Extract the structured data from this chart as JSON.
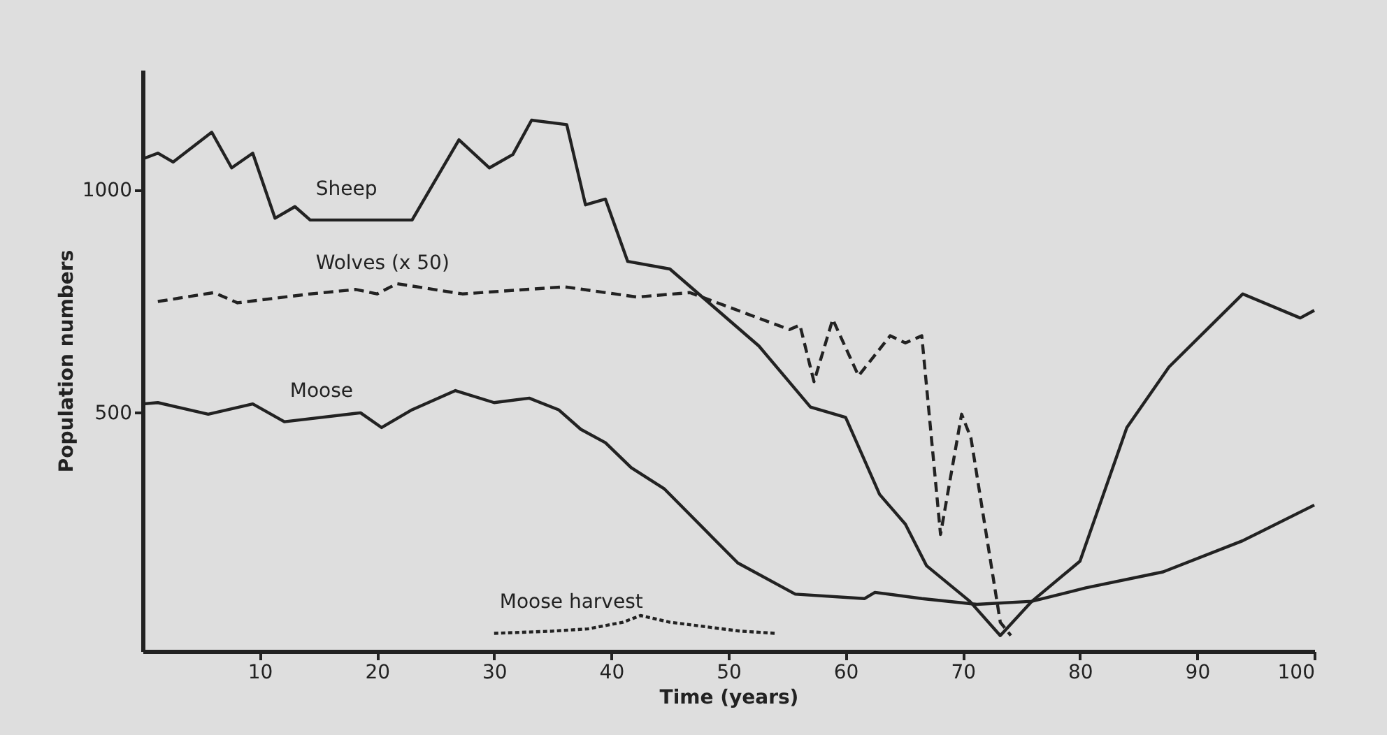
{
  "chart_data": {
    "type": "line",
    "xlabel": "Time (years)",
    "ylabel": "Population numbers",
    "xlim": [
      0,
      100
    ],
    "xticks": [
      10,
      20,
      30,
      40,
      50,
      60,
      70,
      80,
      90,
      100
    ],
    "ylim": [
      -35,
      1270
    ],
    "yticks": [
      500,
      1000
    ],
    "marker": "none",
    "series": [
      {
        "name": "Sheep",
        "color": "#222222",
        "line_style": "solid",
        "x": [
          0,
          1.3,
          2.6,
          5.9,
          7.6,
          9.4,
          11.3,
          13,
          14.3,
          23,
          27,
          29.6,
          31.6,
          33.2,
          36.2,
          37.8,
          39.5,
          41.4,
          45,
          52.6,
          57,
          60,
          62.9,
          65.1,
          66.9,
          70.6,
          73.2,
          75.9,
          80,
          84,
          87.6,
          93.9,
          98.8,
          100
        ],
        "values": [
          1070,
          1083,
          1063,
          1130,
          1050,
          1083,
          937,
          963,
          933,
          933,
          1113,
          1050,
          1080,
          1157,
          1147,
          967,
          980,
          840,
          823,
          650,
          513,
          490,
          317,
          250,
          157,
          77,
          0,
          77,
          167,
          467,
          603,
          767,
          713,
          730
        ]
      },
      {
        "name": "Wolves (x 50)",
        "color": "#222222",
        "line_style": "dashed",
        "x": [
          1.3,
          6.1,
          8.1,
          14.3,
          18.2,
          20,
          21.7,
          27.3,
          36,
          42.2,
          46.7,
          55.2,
          56.1,
          57.3,
          58.9,
          61.1,
          63.8,
          65.1,
          66.5,
          68.1,
          69.9,
          70.7,
          73.2,
          74.1
        ],
        "values": [
          750,
          770,
          747,
          767,
          777,
          767,
          790,
          767,
          783,
          760,
          770,
          687,
          697,
          570,
          710,
          583,
          673,
          657,
          673,
          227,
          497,
          443,
          30,
          0
        ]
      },
      {
        "name": "Moose",
        "color": "#222222",
        "line_style": "solid",
        "x": [
          0,
          1.3,
          5.6,
          9.4,
          12.1,
          18.6,
          20.4,
          23,
          26.7,
          30,
          33,
          35.5,
          37.4,
          39.5,
          41.7,
          44.5,
          50.8,
          55.7,
          61.6,
          62.5,
          66.5,
          71.2,
          75.9,
          80.5,
          87.1,
          93.9,
          100
        ],
        "values": [
          520,
          523,
          497,
          520,
          480,
          500,
          467,
          507,
          550,
          523,
          533,
          507,
          463,
          433,
          377,
          330,
          163,
          93,
          83,
          97,
          83,
          70,
          77,
          107,
          143,
          213,
          293
        ]
      },
      {
        "name": "Moose harvest",
        "color": "#222222",
        "line_style": "dotted",
        "x": [
          30,
          35,
          38,
          41,
          42.5,
          45,
          48,
          51,
          54
        ],
        "values": [
          5,
          10,
          15,
          30,
          45,
          30,
          20,
          10,
          5
        ]
      }
    ]
  }
}
